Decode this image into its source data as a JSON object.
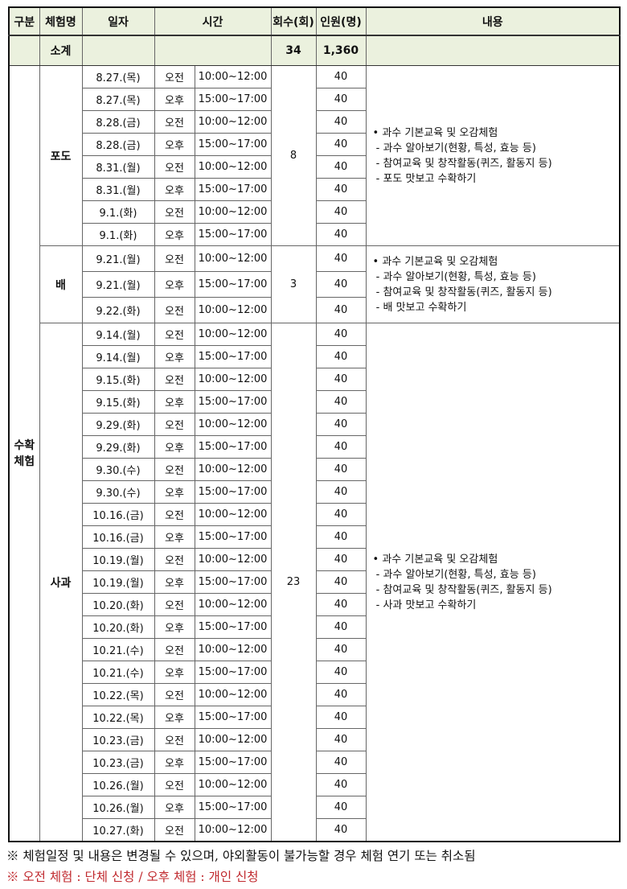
{
  "headers": {
    "category": "구분",
    "program": "체험명",
    "date": "일자",
    "time": "시간",
    "sessions": "회수(회)",
    "people": "인원(명)",
    "content": "내용"
  },
  "subtotal": {
    "label": "소계",
    "sessions": "34",
    "people": "1,360"
  },
  "category": "수확\n체험",
  "programs": [
    {
      "name": "포도",
      "sessions": "8",
      "content": "• 과수 기본교육 및 오감체험\n - 과수 알아보기(현황, 특성, 효능 등)\n - 참여교육 및 창작활동(퀴즈, 활동지 등)\n - 포도 맛보고 수확하기",
      "rows": [
        [
          "8.27.(목)",
          "오전",
          "10:00~12:00",
          "40"
        ],
        [
          "8.27.(목)",
          "오후",
          "15:00~17:00",
          "40"
        ],
        [
          "8.28.(금)",
          "오전",
          "10:00~12:00",
          "40"
        ],
        [
          "8.28.(금)",
          "오후",
          "15:00~17:00",
          "40"
        ],
        [
          "8.31.(월)",
          "오전",
          "10:00~12:00",
          "40"
        ],
        [
          "8.31.(월)",
          "오후",
          "15:00~17:00",
          "40"
        ],
        [
          "9.1.(화)",
          "오전",
          "10:00~12:00",
          "40"
        ],
        [
          "9.1.(화)",
          "오후",
          "15:00~17:00",
          "40"
        ]
      ]
    },
    {
      "name": "배",
      "sessions": "3",
      "content": "• 과수 기본교육 및 오감체험\n - 과수 알아보기(현황, 특성, 효능 등)\n - 참여교육 및 창작활동(퀴즈, 활동지 등)\n - 배 맛보고 수확하기",
      "rows": [
        [
          "9.21.(월)",
          "오전",
          "10:00~12:00",
          "40"
        ],
        [
          "9.21.(월)",
          "오후",
          "15:00~17:00",
          "40"
        ],
        [
          "9.22.(화)",
          "오전",
          "10:00~12:00",
          "40"
        ]
      ]
    },
    {
      "name": "사과",
      "sessions": "23",
      "content": "• 과수 기본교육 및 오감체험\n - 과수 알아보기(현황, 특성, 효능 등)\n - 참여교육 및 창작활동(퀴즈, 활동지 등)\n - 사과 맛보고 수확하기",
      "rows": [
        [
          "9.14.(월)",
          "오전",
          "10:00~12:00",
          "40"
        ],
        [
          "9.14.(월)",
          "오후",
          "15:00~17:00",
          "40"
        ],
        [
          "9.15.(화)",
          "오전",
          "10:00~12:00",
          "40"
        ],
        [
          "9.15.(화)",
          "오후",
          "15:00~17:00",
          "40"
        ],
        [
          "9.29.(화)",
          "오전",
          "10:00~12:00",
          "40"
        ],
        [
          "9.29.(화)",
          "오후",
          "15:00~17:00",
          "40"
        ],
        [
          "9.30.(수)",
          "오전",
          "10:00~12:00",
          "40"
        ],
        [
          "9.30.(수)",
          "오후",
          "15:00~17:00",
          "40"
        ],
        [
          "10.16.(금)",
          "오전",
          "10:00~12:00",
          "40"
        ],
        [
          "10.16.(금)",
          "오후",
          "15:00~17:00",
          "40"
        ],
        [
          "10.19.(월)",
          "오전",
          "10:00~12:00",
          "40"
        ],
        [
          "10.19.(월)",
          "오후",
          "15:00~17:00",
          "40"
        ],
        [
          "10.20.(화)",
          "오전",
          "10:00~12:00",
          "40"
        ],
        [
          "10.20.(화)",
          "오후",
          "15:00~17:00",
          "40"
        ],
        [
          "10.21.(수)",
          "오전",
          "10:00~12:00",
          "40"
        ],
        [
          "10.21.(수)",
          "오후",
          "15:00~17:00",
          "40"
        ],
        [
          "10.22.(목)",
          "오전",
          "10:00~12:00",
          "40"
        ],
        [
          "10.22.(목)",
          "오후",
          "15:00~17:00",
          "40"
        ],
        [
          "10.23.(금)",
          "오전",
          "10:00~12:00",
          "40"
        ],
        [
          "10.23.(금)",
          "오후",
          "15:00~17:00",
          "40"
        ],
        [
          "10.26.(월)",
          "오전",
          "10:00~12:00",
          "40"
        ],
        [
          "10.26.(월)",
          "오후",
          "15:00~17:00",
          "40"
        ],
        [
          "10.27.(화)",
          "오전",
          "10:00~12:00",
          "40"
        ]
      ]
    }
  ],
  "notes": {
    "note1": "※ 체험일정 및 내용은 변경될 수 있으며, 야외활동이 불가능할 경우 체험 연기 또는 취소됨",
    "note2": "※ 오전 체험 : 단체 신청 / 오후 체험 : 개인 신청"
  },
  "colors": {
    "header_bg": "#ebf1de",
    "note2": "#c0282d"
  }
}
